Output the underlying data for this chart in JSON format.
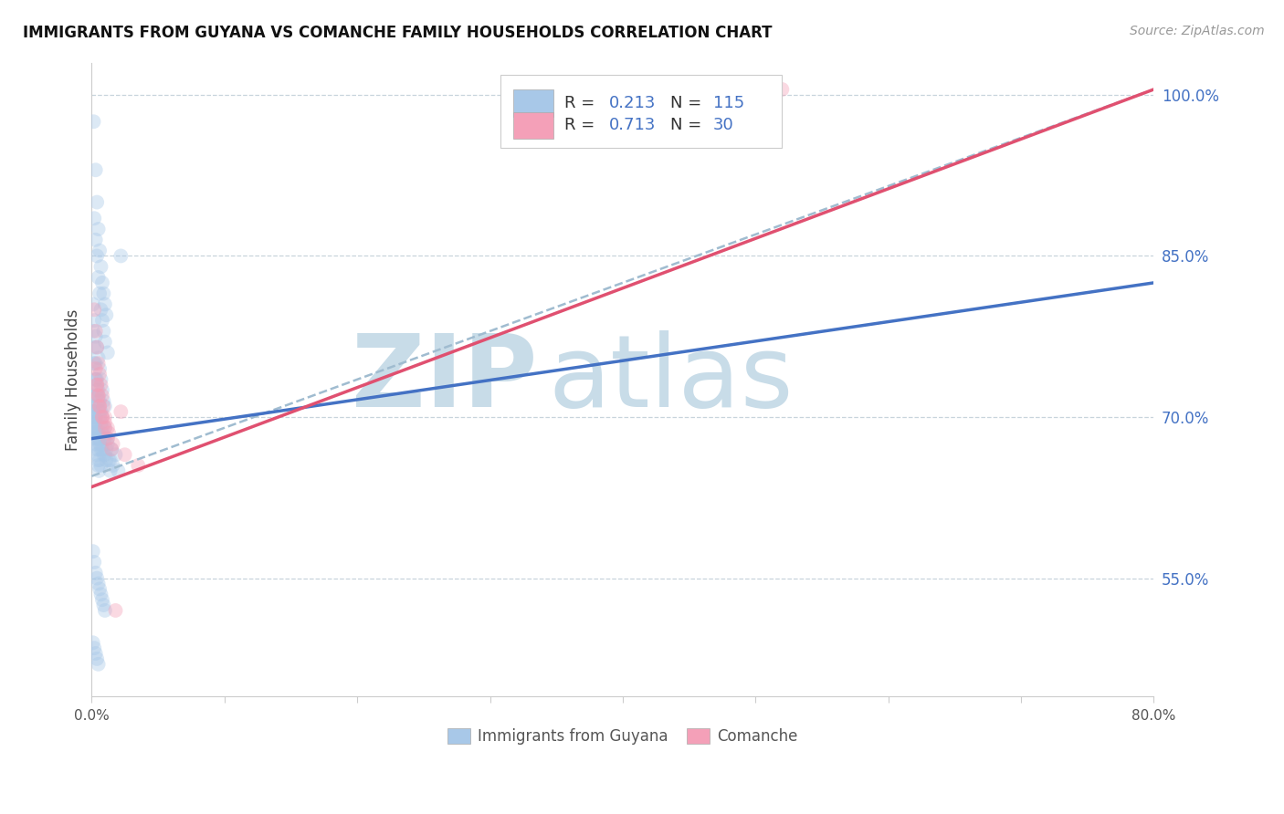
{
  "title": "IMMIGRANTS FROM GUYANA VS COMANCHE FAMILY HOUSEHOLDS CORRELATION CHART",
  "source": "Source: ZipAtlas.com",
  "ylabel": "Family Households",
  "xlim": [
    0.0,
    80.0
  ],
  "ylim": [
    44.0,
    103.0
  ],
  "yticks": [
    55.0,
    70.0,
    85.0,
    100.0
  ],
  "color_blue": "#a8c8e8",
  "color_pink": "#f4a0b8",
  "color_blue_line": "#4472c4",
  "color_pink_line": "#e05070",
  "color_dashed_line": "#a0bcd0",
  "watermark_zip": "ZIP",
  "watermark_atlas": "atlas",
  "watermark_color_zip": "#c8dce8",
  "watermark_color_atlas": "#c8dce8",
  "label_guyana": "Immigrants from Guyana",
  "label_comanche": "Comanche",
  "trend_blue_x0": 0.0,
  "trend_blue_y0": 68.0,
  "trend_blue_x1": 80.0,
  "trend_blue_y1": 82.5,
  "trend_pink_x0": 0.0,
  "trend_pink_y0": 63.5,
  "trend_pink_x1": 80.0,
  "trend_pink_y1": 100.5,
  "trend_dashed_x0": 0.0,
  "trend_dashed_y0": 64.5,
  "trend_dashed_x1": 80.0,
  "trend_dashed_y1": 100.5,
  "blue_scatter_x": [
    0.15,
    0.3,
    0.4,
    0.5,
    0.6,
    0.7,
    0.8,
    0.9,
    1.0,
    1.1,
    0.2,
    0.3,
    0.4,
    0.5,
    0.6,
    0.7,
    0.8,
    0.9,
    1.0,
    1.2,
    0.1,
    0.2,
    0.3,
    0.4,
    0.5,
    0.6,
    0.7,
    0.8,
    0.9,
    1.0,
    0.1,
    0.2,
    0.3,
    0.4,
    0.5,
    0.6,
    0.7,
    0.8,
    1.0,
    1.2,
    0.2,
    0.3,
    0.4,
    0.5,
    0.6,
    0.7,
    0.8,
    0.9,
    1.1,
    1.4,
    0.3,
    0.4,
    0.5,
    0.6,
    0.8,
    1.0,
    1.2,
    1.5,
    1.8,
    2.2,
    0.1,
    0.2,
    0.3,
    0.4,
    0.5,
    0.6,
    0.7,
    0.9,
    1.1,
    1.4,
    0.1,
    0.15,
    0.2,
    0.25,
    0.3,
    0.35,
    0.4,
    0.5,
    0.6,
    0.7,
    0.2,
    0.3,
    0.4,
    0.5,
    0.6,
    0.8,
    1.0,
    1.3,
    1.6,
    2.0,
    0.1,
    0.15,
    0.2,
    0.25,
    0.3,
    0.35,
    0.4,
    0.45,
    0.5,
    0.55,
    0.1,
    0.2,
    0.3,
    0.4,
    0.5,
    0.6,
    0.7,
    0.8,
    0.9,
    1.0,
    0.1,
    0.2,
    0.3,
    0.4,
    0.5,
    50.0
  ],
  "blue_scatter_y": [
    97.5,
    93.0,
    90.0,
    87.5,
    85.5,
    84.0,
    82.5,
    81.5,
    80.5,
    79.5,
    88.5,
    86.5,
    85.0,
    83.0,
    81.5,
    80.0,
    79.0,
    78.0,
    77.0,
    76.0,
    80.5,
    79.0,
    77.5,
    76.5,
    75.5,
    74.5,
    73.5,
    72.5,
    71.5,
    71.0,
    78.0,
    76.5,
    75.0,
    73.5,
    72.5,
    71.5,
    70.5,
    70.0,
    69.0,
    68.0,
    75.0,
    73.5,
    72.5,
    71.5,
    70.5,
    69.5,
    68.5,
    68.0,
    67.0,
    66.0,
    73.5,
    72.0,
    71.0,
    70.0,
    69.0,
    68.0,
    67.5,
    67.0,
    66.5,
    85.0,
    72.0,
    70.5,
    69.5,
    68.5,
    68.0,
    67.5,
    67.0,
    66.5,
    66.0,
    65.0,
    71.0,
    70.5,
    70.0,
    69.5,
    69.0,
    68.5,
    68.0,
    67.0,
    66.0,
    65.5,
    70.5,
    70.0,
    69.5,
    68.5,
    68.0,
    67.0,
    66.5,
    66.0,
    65.5,
    65.0,
    69.5,
    69.0,
    68.5,
    68.0,
    67.5,
    67.0,
    66.5,
    66.0,
    65.5,
    65.0,
    57.5,
    56.5,
    55.5,
    55.0,
    54.5,
    54.0,
    53.5,
    53.0,
    52.5,
    52.0,
    49.0,
    48.5,
    48.0,
    47.5,
    47.0,
    100.5
  ],
  "pink_scatter_x": [
    0.2,
    0.3,
    0.4,
    0.5,
    0.6,
    0.7,
    0.8,
    0.9,
    1.0,
    1.2,
    0.3,
    0.4,
    0.5,
    0.6,
    0.8,
    1.0,
    1.2,
    1.5,
    1.8,
    2.2,
    0.4,
    0.5,
    0.6,
    0.8,
    1.0,
    1.3,
    1.6,
    2.5,
    3.5,
    52.0
  ],
  "pink_scatter_y": [
    80.0,
    78.0,
    76.5,
    75.0,
    74.0,
    73.0,
    72.0,
    71.0,
    70.0,
    69.0,
    74.5,
    73.0,
    72.0,
    71.0,
    70.0,
    69.0,
    68.0,
    67.0,
    52.0,
    70.5,
    73.0,
    72.0,
    71.0,
    70.0,
    69.5,
    68.5,
    67.5,
    66.5,
    65.5,
    100.5
  ],
  "grid_color": "#c8d4dc",
  "background_color": "#ffffff",
  "right_axis_color": "#4472c4",
  "scatter_size": 130,
  "scatter_alpha": 0.4
}
